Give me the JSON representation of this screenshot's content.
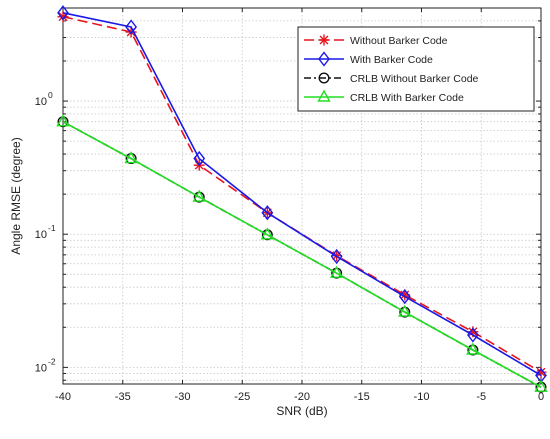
{
  "chart_data": {
    "type": "line",
    "title": "",
    "xlabel": "SNR (dB)",
    "ylabel": "Angle RMSE (degree)",
    "yscale": "log",
    "xlim": [
      -40,
      0
    ],
    "ylim": [
      0.0075,
      5
    ],
    "grid": true,
    "legend_position": "top-right",
    "x": [
      -40,
      -34.3,
      -28.6,
      -22.9,
      -17.1,
      -11.4,
      -5.7,
      0
    ],
    "x_ticks": [
      -40,
      -35,
      -30,
      -25,
      -20,
      -15,
      -10,
      -5,
      0
    ],
    "x_tick_labels": [
      "-40",
      "-35",
      "-30",
      "-25",
      "-20",
      "-15",
      "-10",
      "-5",
      "0"
    ],
    "y_ticks": [
      0.01,
      0.1,
      1
    ],
    "y_tick_labels": [
      {
        "base": "10",
        "exp": "-2"
      },
      {
        "base": "10",
        "exp": "-1"
      },
      {
        "base": "10",
        "exp": "0"
      }
    ],
    "series": [
      {
        "name": "Without Barker Code",
        "color": "#e8141e",
        "dash": "10,5",
        "marker": "asterisk",
        "values": [
          4.3,
          3.3,
          0.33,
          0.145,
          0.069,
          0.035,
          0.0185,
          0.0092
        ]
      },
      {
        "name": "With Barker Code",
        "color": "#1a1ae6",
        "dash": "",
        "marker": "diamond",
        "values": [
          4.6,
          3.6,
          0.37,
          0.145,
          0.068,
          0.034,
          0.0175,
          0.0087
        ]
      },
      {
        "name": "CRLB Without Barker Code",
        "color": "#111111",
        "dash": "7,3,2,3",
        "marker": "circle",
        "values": [
          0.7,
          0.37,
          0.19,
          0.099,
          0.051,
          0.026,
          0.0135,
          0.0071
        ]
      },
      {
        "name": "CRLB With Barker Code",
        "color": "#22dd22",
        "dash": "",
        "marker": "triangle",
        "values": [
          0.7,
          0.37,
          0.19,
          0.099,
          0.051,
          0.026,
          0.0135,
          0.0071
        ]
      }
    ]
  }
}
